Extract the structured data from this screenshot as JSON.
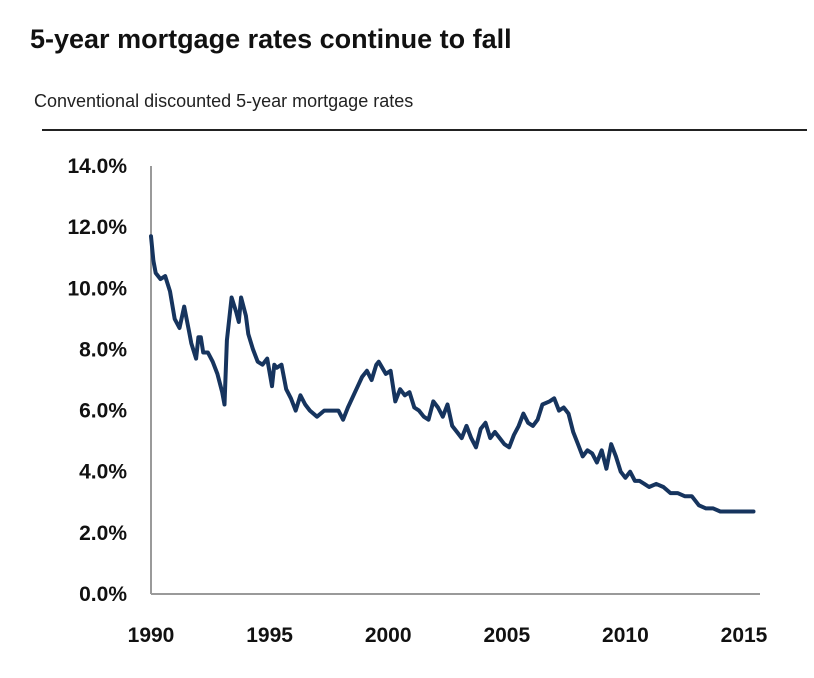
{
  "chart_data": {
    "type": "line",
    "title": "5-year mortgage rates continue to fall",
    "subtitle": "Conventional discounted 5-year mortgage rates",
    "xlabel": "",
    "ylabel": "",
    "xlim": [
      1990,
      2015.5
    ],
    "ylim": [
      0,
      14
    ],
    "x_ticks": [
      1990,
      1995,
      2000,
      2005,
      2010,
      2015
    ],
    "x_tick_labels": [
      "1990",
      "1995",
      "2000",
      "2005",
      "2010",
      "2015"
    ],
    "y_ticks": [
      0,
      2,
      4,
      6,
      8,
      10,
      12,
      14
    ],
    "y_tick_labels": [
      "0.0%",
      "2.0%",
      "4.0%",
      "6.0%",
      "8.0%",
      "10.0%",
      "12.0%",
      "14.0%"
    ],
    "grid": false,
    "legend": "none",
    "line_color": "#16345e",
    "series": [
      {
        "x": [
          1990.0,
          1990.1,
          1990.2,
          1990.4,
          1990.6,
          1990.8,
          1991.0,
          1991.2,
          1991.4,
          1991.6,
          1991.7,
          1991.9,
          1992.0,
          1992.1,
          1992.2,
          1992.4,
          1992.6,
          1992.8,
          1993.0,
          1993.1,
          1993.2,
          1993.4,
          1993.6,
          1993.7,
          1993.8,
          1994.0,
          1994.1,
          1994.3,
          1994.5,
          1994.7,
          1994.9,
          1995.1,
          1995.2,
          1995.3,
          1995.5,
          1995.7,
          1995.9,
          1996.1,
          1996.3,
          1996.5,
          1996.7,
          1997.0,
          1997.3,
          1997.6,
          1997.9,
          1998.1,
          1998.3,
          1998.6,
          1998.9,
          1999.1,
          1999.3,
          1999.5,
          1999.6,
          1999.9,
          2000.1,
          2000.3,
          2000.5,
          2000.7,
          2000.9,
          2001.1,
          2001.3,
          2001.5,
          2001.7,
          2001.9,
          2002.1,
          2002.3,
          2002.5,
          2002.7,
          2002.9,
          2003.1,
          2003.3,
          2003.5,
          2003.7,
          2003.9,
          2004.1,
          2004.3,
          2004.5,
          2004.7,
          2004.9,
          2005.1,
          2005.3,
          2005.5,
          2005.7,
          2005.9,
          2006.1,
          2006.3,
          2006.5,
          2006.8,
          2007.0,
          2007.2,
          2007.4,
          2007.6,
          2007.8,
          2008.0,
          2008.2,
          2008.4,
          2008.6,
          2008.8,
          2009.0,
          2009.2,
          2009.4,
          2009.6,
          2009.8,
          2010.0,
          2010.2,
          2010.4,
          2010.6,
          2010.8,
          2011.0,
          2011.3,
          2011.6,
          2011.9,
          2012.2,
          2012.5,
          2012.8,
          2013.1,
          2013.4,
          2013.7,
          2014.0,
          2014.3,
          2014.6,
          2015.0,
          2015.4
        ],
        "values": [
          11.7,
          10.9,
          10.5,
          10.3,
          10.4,
          9.9,
          9.0,
          8.7,
          9.4,
          8.6,
          8.2,
          7.7,
          8.4,
          8.4,
          7.9,
          7.9,
          7.6,
          7.2,
          6.6,
          6.2,
          8.3,
          9.7,
          9.2,
          8.9,
          9.7,
          9.1,
          8.5,
          8.0,
          7.6,
          7.5,
          7.7,
          6.8,
          7.5,
          7.4,
          7.5,
          6.7,
          6.4,
          6.0,
          6.5,
          6.2,
          6.0,
          5.8,
          6.0,
          6.0,
          6.0,
          5.7,
          6.1,
          6.6,
          7.1,
          7.3,
          7.0,
          7.5,
          7.6,
          7.2,
          7.3,
          6.3,
          6.7,
          6.5,
          6.6,
          6.1,
          6.0,
          5.8,
          5.7,
          6.3,
          6.1,
          5.8,
          6.2,
          5.5,
          5.3,
          5.1,
          5.5,
          5.1,
          4.8,
          5.4,
          5.6,
          5.1,
          5.3,
          5.1,
          4.9,
          4.8,
          5.2,
          5.5,
          5.9,
          5.6,
          5.5,
          5.7,
          6.2,
          6.3,
          6.4,
          6.0,
          6.1,
          5.9,
          5.3,
          4.9,
          4.5,
          4.7,
          4.6,
          4.3,
          4.7,
          4.1,
          4.9,
          4.5,
          4.0,
          3.8,
          4.0,
          3.7,
          3.7,
          3.6,
          3.5,
          3.6,
          3.5,
          3.3,
          3.3,
          3.2,
          3.2,
          2.9,
          2.8,
          2.8,
          2.7,
          2.7,
          2.7,
          2.7,
          2.7
        ]
      }
    ]
  }
}
